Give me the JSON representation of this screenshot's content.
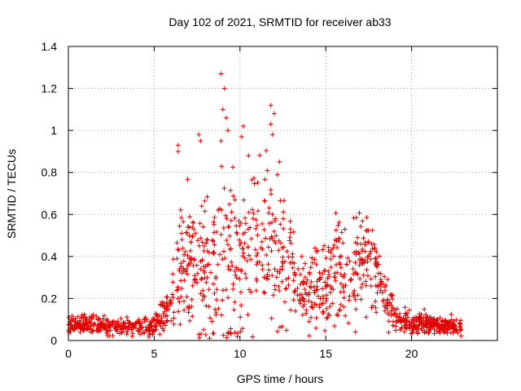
{
  "chart_data": {
    "type": "scatter",
    "title": "Day 102 of 2021, SRMTID for receiver ab33",
    "xlabel": "GPS time / hours",
    "ylabel": "SRMTID / TECUs",
    "xlim": [
      0,
      25
    ],
    "ylim": [
      0,
      1.4
    ],
    "xticks": [
      0,
      5,
      10,
      15,
      20
    ],
    "xtick_labels": [
      "0",
      "5",
      "10",
      "15",
      "20"
    ],
    "yticks": [
      0,
      0.2,
      0.4,
      0.6,
      0.8,
      1.0,
      1.2,
      1.4
    ],
    "ytick_labels": [
      "0",
      "0.2",
      "0.4",
      "0.6",
      "0.8",
      "1",
      "1.2",
      "1.4"
    ],
    "grid": true,
    "marker": "+",
    "series": [
      {
        "name": "SRMTID",
        "color": "#e00000",
        "envelope": {
          "x": [
            0,
            1,
            2,
            3,
            4,
            5,
            5.5,
            6,
            6.5,
            7,
            7.5,
            8,
            8.5,
            9,
            9.5,
            10,
            10.5,
            11,
            11.5,
            12,
            12.5,
            13,
            13.5,
            14,
            14.5,
            15,
            15.5,
            16,
            16.5,
            17,
            17.5,
            18,
            18.5,
            19,
            20,
            21,
            22,
            22.9
          ],
          "median": [
            0.07,
            0.08,
            0.08,
            0.06,
            0.07,
            0.07,
            0.12,
            0.2,
            0.33,
            0.4,
            0.38,
            0.33,
            0.36,
            0.4,
            0.36,
            0.38,
            0.45,
            0.5,
            0.43,
            0.45,
            0.38,
            0.33,
            0.24,
            0.22,
            0.27,
            0.3,
            0.35,
            0.34,
            0.33,
            0.38,
            0.4,
            0.33,
            0.2,
            0.12,
            0.08,
            0.08,
            0.07,
            0.07
          ],
          "spread": [
            0.025,
            0.03,
            0.03,
            0.025,
            0.025,
            0.03,
            0.05,
            0.09,
            0.17,
            0.2,
            0.22,
            0.22,
            0.25,
            0.3,
            0.28,
            0.27,
            0.25,
            0.24,
            0.25,
            0.24,
            0.22,
            0.18,
            0.11,
            0.1,
            0.13,
            0.16,
            0.16,
            0.16,
            0.17,
            0.18,
            0.18,
            0.15,
            0.09,
            0.05,
            0.03,
            0.03,
            0.025,
            0.025
          ]
        },
        "n_points": 1300,
        "outliers": [
          {
            "x": 8.9,
            "y": 1.27
          },
          {
            "x": 9.1,
            "y": 1.2
          },
          {
            "x": 9.0,
            "y": 1.1
          },
          {
            "x": 9.2,
            "y": 1.06
          },
          {
            "x": 9.3,
            "y": 1.0
          },
          {
            "x": 8.9,
            "y": 0.95
          },
          {
            "x": 7.6,
            "y": 0.98
          },
          {
            "x": 7.7,
            "y": 0.95
          },
          {
            "x": 10.2,
            "y": 1.02
          },
          {
            "x": 10.1,
            "y": 0.97
          },
          {
            "x": 11.8,
            "y": 1.12
          },
          {
            "x": 12.0,
            "y": 1.08
          },
          {
            "x": 11.8,
            "y": 1.03
          },
          {
            "x": 11.9,
            "y": 0.98
          },
          {
            "x": 6.4,
            "y": 0.93
          },
          {
            "x": 6.4,
            "y": 0.9
          },
          {
            "x": 12.3,
            "y": 0.85
          },
          {
            "x": 10.5,
            "y": 0.88
          }
        ]
      }
    ]
  }
}
